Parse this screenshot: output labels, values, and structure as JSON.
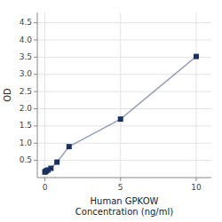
{
  "chart_data": {
    "type": "line",
    "x": [
      0.0,
      0.05,
      0.1,
      0.2,
      0.4,
      0.8,
      1.6,
      5.0,
      10.0
    ],
    "values": [
      0.16,
      0.18,
      0.2,
      0.22,
      0.27,
      0.45,
      0.9,
      1.7,
      3.52
    ],
    "color": "#1a3060",
    "marker": "square",
    "x_label": "Human GPKOW\nConcentration (ng/ml)",
    "y_label": "OD",
    "xlim": [
      -0.5,
      11
    ],
    "ylim": [
      0,
      4.8
    ],
    "xticks": [
      0,
      5,
      10
    ],
    "yticks": [
      0.5,
      {
        "value": 1.0,
        "label": "1.0"
      },
      1.5,
      {
        "value": 2.0,
        "label": "2.0"
      },
      2.5,
      {
        "value": 3.0,
        "label": "3.0"
      },
      3.5,
      {
        "value": 4.0,
        "label": "4.0"
      },
      4.5
    ],
    "grid": true
  }
}
